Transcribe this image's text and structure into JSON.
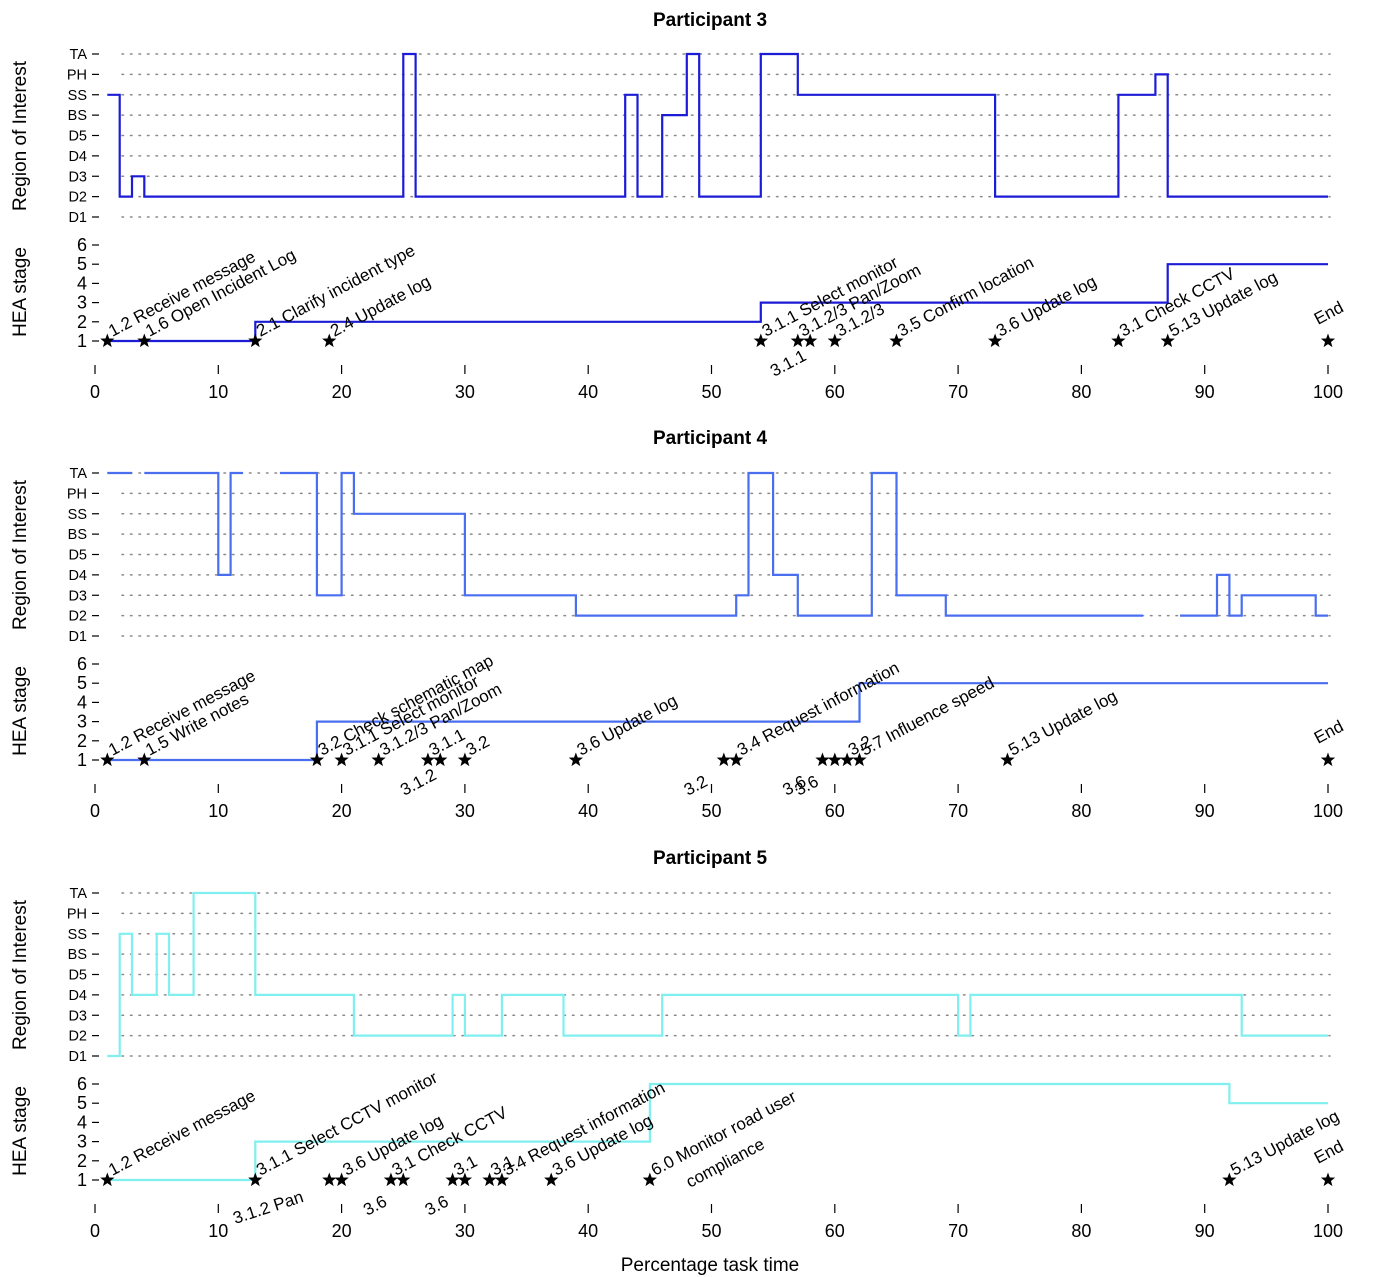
{
  "figure": {
    "xlabel": "Percentage task time"
  },
  "chart_data": [
    {
      "type": "line",
      "title": "Participant 3",
      "color": "#1c1cd6",
      "xlim": [
        0,
        100
      ],
      "xticks": [
        "0",
        "10",
        "20",
        "30",
        "40",
        "50",
        "60",
        "70",
        "80",
        "90",
        "100"
      ],
      "roi_ylabel": "Region of Interest",
      "roi_categories": [
        "D1",
        "D2",
        "D3",
        "D4",
        "D5",
        "BS",
        "SS",
        "PH",
        "TA"
      ],
      "roi_series": [
        [
          [
            1,
            "SS"
          ],
          [
            2,
            "SS"
          ],
          [
            2,
            "D2"
          ],
          [
            3,
            "D2"
          ],
          [
            3,
            "D3"
          ],
          [
            4,
            "D3"
          ],
          [
            4,
            "D2"
          ],
          [
            25,
            "D2"
          ],
          [
            25,
            "TA"
          ],
          [
            26,
            "TA"
          ],
          [
            26,
            "D2"
          ],
          [
            43,
            "D2"
          ],
          [
            43,
            "SS"
          ],
          [
            44,
            "SS"
          ],
          [
            44,
            "D2"
          ],
          [
            46,
            "D2"
          ],
          [
            46,
            "BS"
          ],
          [
            48,
            "BS"
          ],
          [
            48,
            "TA"
          ],
          [
            49,
            "TA"
          ],
          [
            49,
            "D2"
          ],
          [
            54,
            "D2"
          ],
          [
            54,
            "TA"
          ],
          [
            57,
            "TA"
          ],
          [
            57,
            "SS"
          ],
          [
            73,
            "SS"
          ],
          [
            73,
            "D2"
          ],
          [
            83,
            "D2"
          ],
          [
            83,
            "SS"
          ],
          [
            86,
            "SS"
          ],
          [
            86,
            "PH"
          ],
          [
            87,
            "PH"
          ],
          [
            87,
            "D2"
          ],
          [
            100,
            "D2"
          ]
        ]
      ],
      "hea_ylabel": "HEA stage",
      "hea_yticks": [
        "1",
        "2",
        "3",
        "4",
        "5",
        "6"
      ],
      "hea_series": [
        [
          1,
          1
        ],
        [
          13,
          1
        ],
        [
          13,
          2
        ],
        [
          54,
          2
        ],
        [
          54,
          3
        ],
        [
          87,
          3
        ],
        [
          87,
          5
        ],
        [
          100,
          5
        ]
      ],
      "events": [
        {
          "x": 1,
          "y": 1,
          "label": "1.2 Receive message",
          "pos": "up"
        },
        {
          "x": 4,
          "y": 1,
          "label": "1.6 Open Incident Log",
          "pos": "up"
        },
        {
          "x": 13,
          "y": 1,
          "label": "2.1 Clarify incident type",
          "pos": "up"
        },
        {
          "x": 19,
          "y": 1,
          "label": "2.4 Update log",
          "pos": "up"
        },
        {
          "x": 54,
          "y": 1,
          "label": "3.1.1 Select monitor",
          "pos": "up"
        },
        {
          "x": 57,
          "y": 1,
          "label": "3.1.2/3 Pan/Zoom",
          "pos": "up"
        },
        {
          "x": 58,
          "y": 1,
          "label": "3.1.1",
          "pos": "down"
        },
        {
          "x": 60,
          "y": 1,
          "label": "3.1.2/3",
          "pos": "up"
        },
        {
          "x": 65,
          "y": 1,
          "label": "3.5 Confirm location",
          "pos": "up"
        },
        {
          "x": 73,
          "y": 1,
          "label": "3.6 Update log",
          "pos": "up"
        },
        {
          "x": 83,
          "y": 1,
          "label": "3.1 Check CCTV",
          "pos": "up"
        },
        {
          "x": 87,
          "y": 1,
          "label": "5.13 Update log",
          "pos": "up"
        },
        {
          "x": 100,
          "y": 1,
          "label": "End",
          "pos": "end"
        }
      ]
    },
    {
      "type": "line",
      "title": "Participant 4",
      "color": "#4a6ef0",
      "xlim": [
        0,
        100
      ],
      "xticks": [
        "0",
        "10",
        "20",
        "30",
        "40",
        "50",
        "60",
        "70",
        "80",
        "90",
        "100"
      ],
      "roi_ylabel": "Region of Interest",
      "roi_categories": [
        "D1",
        "D2",
        "D3",
        "D4",
        "D5",
        "BS",
        "SS",
        "PH",
        "TA"
      ],
      "roi_series": [
        [
          [
            1,
            "TA"
          ],
          [
            3,
            "TA"
          ]
        ],
        [
          [
            4,
            "TA"
          ],
          [
            10,
            "TA"
          ],
          [
            10,
            "D4"
          ],
          [
            11,
            "D4"
          ],
          [
            11,
            "TA"
          ],
          [
            12,
            "TA"
          ]
        ],
        [
          [
            15,
            "TA"
          ],
          [
            18,
            "TA"
          ],
          [
            18,
            "D3"
          ],
          [
            20,
            "D3"
          ],
          [
            20,
            "TA"
          ],
          [
            21,
            "TA"
          ],
          [
            21,
            "SS"
          ],
          [
            30,
            "SS"
          ],
          [
            30,
            "D3"
          ],
          [
            39,
            "D3"
          ],
          [
            39,
            "D2"
          ],
          [
            52,
            "D2"
          ],
          [
            52,
            "D3"
          ],
          [
            53,
            "D3"
          ],
          [
            53,
            "TA"
          ],
          [
            55,
            "TA"
          ],
          [
            55,
            "D4"
          ],
          [
            57,
            "D4"
          ],
          [
            57,
            "D2"
          ],
          [
            63,
            "D2"
          ],
          [
            63,
            "TA"
          ],
          [
            65,
            "TA"
          ],
          [
            65,
            "D3"
          ],
          [
            69,
            "D3"
          ],
          [
            69,
            "D2"
          ],
          [
            85,
            "D2"
          ]
        ],
        [
          [
            88,
            "D2"
          ],
          [
            91,
            "D2"
          ],
          [
            91,
            "D4"
          ],
          [
            92,
            "D4"
          ],
          [
            92,
            "D2"
          ],
          [
            93,
            "D2"
          ],
          [
            93,
            "D3"
          ],
          [
            99,
            "D3"
          ],
          [
            99,
            "D2"
          ],
          [
            100,
            "D2"
          ]
        ]
      ],
      "hea_ylabel": "HEA stage",
      "hea_yticks": [
        "1",
        "2",
        "3",
        "4",
        "5",
        "6"
      ],
      "hea_series": [
        [
          1,
          1
        ],
        [
          18,
          1
        ],
        [
          18,
          3
        ],
        [
          62,
          3
        ],
        [
          62,
          5
        ],
        [
          100,
          5
        ]
      ],
      "events": [
        {
          "x": 1,
          "y": 1,
          "label": "1.2 Receive message",
          "pos": "up"
        },
        {
          "x": 4,
          "y": 1,
          "label": "1.5 Write notes",
          "pos": "up"
        },
        {
          "x": 18,
          "y": 1,
          "label": "3.2 Check schematic map",
          "pos": "up"
        },
        {
          "x": 20,
          "y": 1,
          "label": "3.1.1 Select monitor",
          "pos": "up"
        },
        {
          "x": 23,
          "y": 1,
          "label": "3.1.2/3 Pan/Zoom",
          "pos": "up"
        },
        {
          "x": 27,
          "y": 1,
          "label": "3.1.1",
          "pos": "up"
        },
        {
          "x": 28,
          "y": 1,
          "label": "3.1.2",
          "pos": "down"
        },
        {
          "x": 30,
          "y": 1,
          "label": "3.2",
          "pos": "up"
        },
        {
          "x": 39,
          "y": 1,
          "label": "3.6 Update log",
          "pos": "up"
        },
        {
          "x": 51,
          "y": 1,
          "label": "3.2",
          "pos": "down"
        },
        {
          "x": 52,
          "y": 1,
          "label": "3.4 Request information",
          "pos": "up"
        },
        {
          "x": 59,
          "y": 1,
          "label": "3.6",
          "pos": "down"
        },
        {
          "x": 60,
          "y": 1,
          "label": "3.6",
          "pos": "down"
        },
        {
          "x": 61,
          "y": 1,
          "label": "3.2",
          "pos": "up"
        },
        {
          "x": 62,
          "y": 1,
          "label": "5.7 Influence speed",
          "pos": "up"
        },
        {
          "x": 74,
          "y": 1,
          "label": "5.13 Update log",
          "pos": "up"
        },
        {
          "x": 100,
          "y": 1,
          "label": "End",
          "pos": "end"
        }
      ]
    },
    {
      "type": "line",
      "title": "Participant 5",
      "color": "#7fefef",
      "xlim": [
        0,
        100
      ],
      "xticks": [
        "0",
        "10",
        "20",
        "30",
        "40",
        "50",
        "60",
        "70",
        "80",
        "90",
        "100"
      ],
      "roi_ylabel": "Region of Interest",
      "roi_categories": [
        "D1",
        "D2",
        "D3",
        "D4",
        "D5",
        "BS",
        "SS",
        "PH",
        "TA"
      ],
      "roi_series": [
        [
          [
            1,
            "D1"
          ],
          [
            2,
            "D1"
          ],
          [
            2,
            "SS"
          ],
          [
            3,
            "SS"
          ],
          [
            3,
            "D4"
          ],
          [
            5,
            "D4"
          ],
          [
            5,
            "SS"
          ],
          [
            6,
            "SS"
          ],
          [
            6,
            "D4"
          ],
          [
            8,
            "D4"
          ],
          [
            8,
            "TA"
          ],
          [
            13,
            "TA"
          ],
          [
            13,
            "D4"
          ],
          [
            21,
            "D4"
          ],
          [
            21,
            "D2"
          ],
          [
            29,
            "D2"
          ],
          [
            29,
            "D4"
          ],
          [
            30,
            "D4"
          ],
          [
            30,
            "D2"
          ],
          [
            33,
            "D2"
          ],
          [
            33,
            "D4"
          ],
          [
            38,
            "D4"
          ],
          [
            38,
            "D2"
          ],
          [
            46,
            "D2"
          ],
          [
            46,
            "D4"
          ],
          [
            70,
            "D4"
          ],
          [
            70,
            "D2"
          ],
          [
            71,
            "D2"
          ],
          [
            71,
            "D4"
          ],
          [
            93,
            "D4"
          ],
          [
            93,
            "D2"
          ],
          [
            100,
            "D2"
          ]
        ]
      ],
      "hea_ylabel": "HEA stage",
      "hea_yticks": [
        "1",
        "2",
        "3",
        "4",
        "5",
        "6"
      ],
      "hea_series": [
        [
          1,
          1
        ],
        [
          13,
          1
        ],
        [
          13,
          3
        ],
        [
          45,
          3
        ],
        [
          45,
          6
        ],
        [
          92,
          6
        ],
        [
          92,
          5
        ],
        [
          100,
          5
        ]
      ],
      "events": [
        {
          "x": 1,
          "y": 1,
          "label": "1.2 Receive message",
          "pos": "up"
        },
        {
          "x": 13,
          "y": 1,
          "label": "3.1.1 Select CCTV monitor",
          "pos": "up"
        },
        {
          "x": 19,
          "y": 1,
          "label": "3.1.2 Pan",
          "pos": "downleft"
        },
        {
          "x": 20,
          "y": 1,
          "label": "3.6 Update log",
          "pos": "up"
        },
        {
          "x": 24,
          "y": 1,
          "label": "3.1 Check CCTV",
          "pos": "up"
        },
        {
          "x": 25,
          "y": 1,
          "label": "3.6",
          "pos": "down"
        },
        {
          "x": 29,
          "y": 1,
          "label": "3.1",
          "pos": "up"
        },
        {
          "x": 30,
          "y": 1,
          "label": "3.6",
          "pos": "down"
        },
        {
          "x": 32,
          "y": 1,
          "label": "3.1",
          "pos": "up"
        },
        {
          "x": 33,
          "y": 1,
          "label": "3.4 Request information",
          "pos": "up"
        },
        {
          "x": 37,
          "y": 1,
          "label": "3.6 Update log",
          "pos": "up"
        },
        {
          "x": 45,
          "y": 1,
          "label": "6.0 Monitor road user",
          "label2": "compliance",
          "pos": "up"
        },
        {
          "x": 92,
          "y": 1,
          "label": "5.13 Update log",
          "pos": "up"
        },
        {
          "x": 100,
          "y": 1,
          "label": "End",
          "pos": "end"
        }
      ]
    }
  ]
}
